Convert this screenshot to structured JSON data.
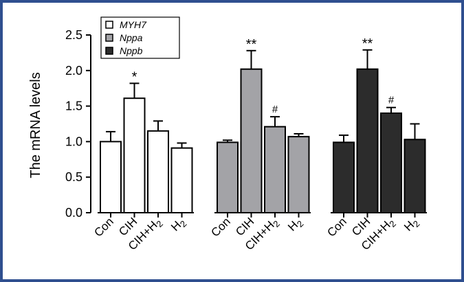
{
  "chart_data": {
    "type": "bar",
    "ylabel": "The mRNA levels",
    "xlabel": "",
    "ylim": [
      0,
      2.5
    ],
    "yticks": [
      "0.0",
      "0.5",
      "1.0",
      "1.5",
      "2.0",
      "2.5"
    ],
    "categories": [
      "Con",
      "CIH",
      "CIH+H2",
      "H2"
    ],
    "legend": {
      "placement": "top-left",
      "entries": [
        "MYH7",
        "Nppa",
        "Nppb"
      ]
    },
    "series": [
      {
        "name": "MYH7",
        "color": "#ffffff",
        "values": [
          1.0,
          1.61,
          1.15,
          0.91
        ],
        "errors": [
          0.14,
          0.21,
          0.14,
          0.07
        ],
        "significance": [
          "",
          "*",
          "",
          ""
        ]
      },
      {
        "name": "Nppa",
        "color": "#a3a3a7",
        "values": [
          0.99,
          2.02,
          1.21,
          1.07
        ],
        "errors": [
          0.03,
          0.26,
          0.14,
          0.04
        ],
        "significance": [
          "",
          "**",
          "#",
          ""
        ]
      },
      {
        "name": "Nppb",
        "color": "#2c2c2c",
        "values": [
          0.99,
          2.02,
          1.4,
          1.03
        ],
        "errors": [
          0.1,
          0.27,
          0.08,
          0.22
        ],
        "significance": [
          "",
          "**",
          "#",
          ""
        ]
      }
    ]
  }
}
